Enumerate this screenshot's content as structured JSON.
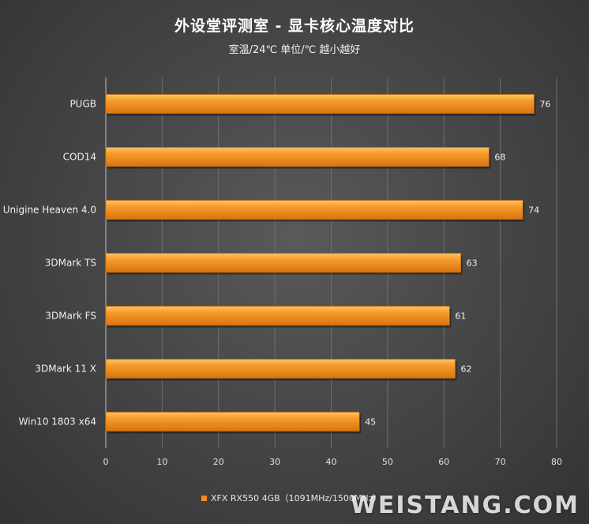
{
  "title": "外设堂评测室 -  显卡核心温度对比",
  "subtitle": "室温/24℃   单位/℃   越小越好",
  "legend_label": "XFX RX550 4GB（1091MHz/1500MHz）",
  "watermark": "WEISTANG.COM",
  "colors": {
    "bar": "#f08c1e",
    "bar_top": "#ffb54a",
    "bar_edge": "#c9680c"
  },
  "chart_data": {
    "type": "bar",
    "orientation": "horizontal",
    "categories": [
      "PUGB",
      "COD14",
      "Unigine Heaven 4.0",
      "3DMark TS",
      "3DMark FS",
      "3DMark 11 X",
      "Win10 1803 x64"
    ],
    "series": [
      {
        "name": "XFX RX550 4GB（1091MHz/1500MHz）",
        "values": [
          76,
          68,
          74,
          63,
          61,
          62,
          45
        ]
      }
    ],
    "xlim": [
      0,
      80
    ],
    "xticks": [
      0,
      10,
      20,
      30,
      40,
      50,
      60,
      70,
      80
    ],
    "grid": true,
    "legend_position": "bottom"
  }
}
